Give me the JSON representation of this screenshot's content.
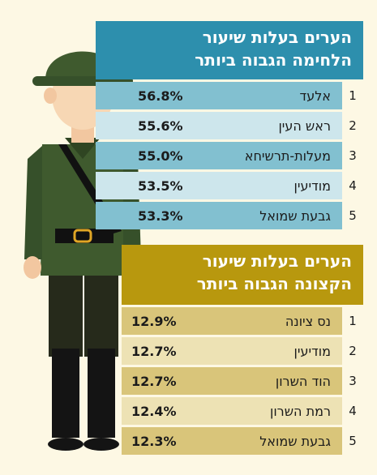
{
  "combat_panel": {
    "title_line1": "הערים בעלות שיעור",
    "title_line2": "הלחימה הגבוה ביותר",
    "rows": [
      {
        "rank": "1",
        "city": "אלעד",
        "percent": "56.8%"
      },
      {
        "rank": "2",
        "city": "ראש העין",
        "percent": "55.6%"
      },
      {
        "rank": "3",
        "city": "מעלות-תרשיחא",
        "percent": "55.0%"
      },
      {
        "rank": "4",
        "city": "מודיעין",
        "percent": "53.5%"
      },
      {
        "rank": "5",
        "city": "גבעת שמואל",
        "percent": "53.3%"
      }
    ]
  },
  "officer_panel": {
    "title_line1": "הערים בעלות שיעור",
    "title_line2": "הקצונה הגבוה ביותר",
    "rows": [
      {
        "rank": "1",
        "city": "נס ציונה",
        "percent": "12.9%"
      },
      {
        "rank": "2",
        "city": "מודיעין",
        "percent": "12.7%"
      },
      {
        "rank": "3",
        "city": "הוד השרון",
        "percent": "12.7%"
      },
      {
        "rank": "4",
        "city": "רמת השרון",
        "percent": "12.4%"
      },
      {
        "rank": "5",
        "city": "גבעת שמואל",
        "percent": "12.3%"
      }
    ]
  },
  "colors": {
    "background": "#fdf8e4",
    "combat_accent": "#2d8fad",
    "officer_accent": "#b8980e",
    "uniform": "#3f5a2e"
  },
  "icons": [
    "soldier-illustration"
  ]
}
